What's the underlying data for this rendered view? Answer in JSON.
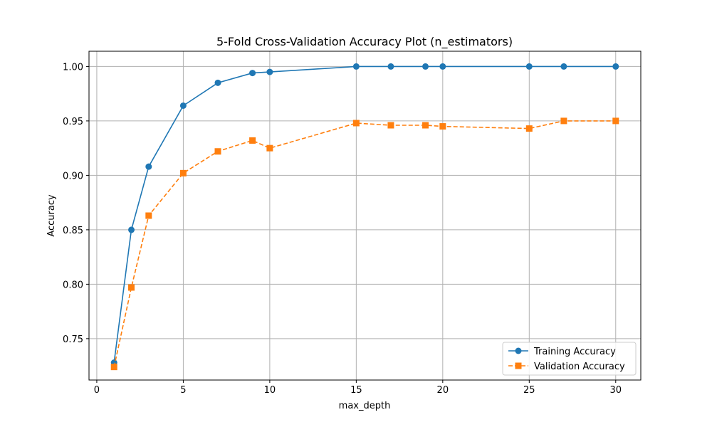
{
  "chart_data": {
    "type": "line",
    "title": "5-Fold Cross-Validation Accuracy Plot (n_estimators)",
    "xlabel": "max_depth",
    "ylabel": "Accuracy",
    "x": [
      1,
      2,
      3,
      5,
      7,
      9,
      10,
      15,
      17,
      19,
      20,
      25,
      27,
      30
    ],
    "xlim": [
      -0.45,
      31.45
    ],
    "ylim": [
      0.712,
      1.014
    ],
    "xticks": [
      0,
      5,
      10,
      15,
      20,
      25,
      30
    ],
    "xtick_labels": [
      "0",
      "5",
      "10",
      "15",
      "20",
      "25",
      "30"
    ],
    "yticks": [
      0.75,
      0.8,
      0.85,
      0.9,
      0.95,
      1.0
    ],
    "ytick_labels": [
      "0.75",
      "0.80",
      "0.85",
      "0.90",
      "0.95",
      "1.00"
    ],
    "grid": true,
    "legend_position": "bottom-right",
    "series": [
      {
        "name": "Training Accuracy",
        "color": "#1f77b4",
        "marker": "circle",
        "line_style": "solid",
        "values": [
          0.728,
          0.85,
          0.908,
          0.964,
          0.985,
          0.994,
          0.995,
          1.0,
          1.0,
          1.0,
          1.0,
          1.0,
          1.0,
          1.0
        ]
      },
      {
        "name": "Validation Accuracy",
        "color": "#ff7f0e",
        "marker": "square",
        "line_style": "dashed",
        "values": [
          0.724,
          0.797,
          0.863,
          0.902,
          0.922,
          0.932,
          0.925,
          0.948,
          0.946,
          0.946,
          0.945,
          0.943,
          0.95,
          0.95
        ]
      }
    ]
  }
}
